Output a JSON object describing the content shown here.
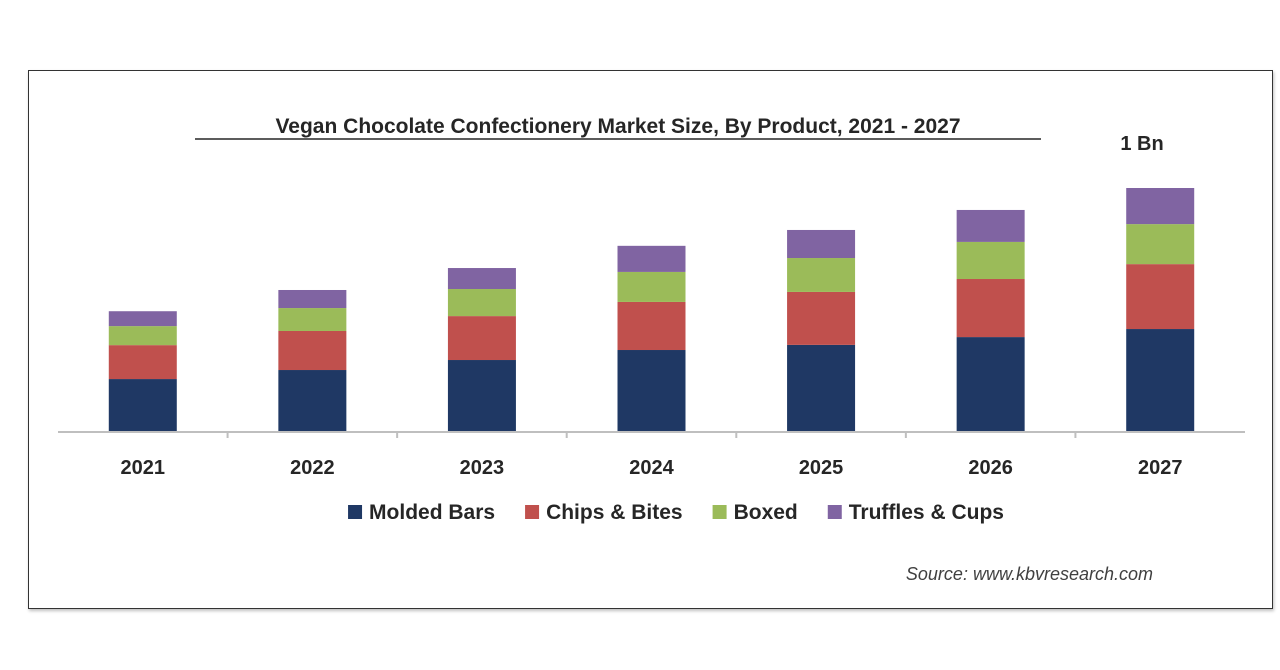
{
  "chart_data": {
    "type": "bar",
    "stacked": true,
    "title": "Vegan Chocolate Confectionery Market Size, By Product, 2021 - 2027",
    "xlabel": "",
    "ylabel": "",
    "ylim": [
      0,
      1.0
    ],
    "grid": false,
    "legend_position": "bottom",
    "categories": [
      "2021",
      "2022",
      "2023",
      "2024",
      "2025",
      "2026",
      "2027"
    ],
    "series": [
      {
        "name": "Molded Bars",
        "color": "#1f3864",
        "values": [
          0.217,
          0.254,
          0.295,
          0.336,
          0.357,
          0.389,
          0.422
        ]
      },
      {
        "name": "Chips & Bites",
        "color": "#c0504d",
        "values": [
          0.139,
          0.16,
          0.18,
          0.197,
          0.217,
          0.238,
          0.266
        ]
      },
      {
        "name": "Boxed",
        "color": "#9bbb59",
        "values": [
          0.078,
          0.094,
          0.111,
          0.123,
          0.139,
          0.152,
          0.164
        ]
      },
      {
        "name": "Truffles & Cups",
        "color": "#8064a2",
        "values": [
          0.061,
          0.074,
          0.086,
          0.107,
          0.115,
          0.131,
          0.148
        ]
      }
    ],
    "annotations": [
      {
        "category": "2027",
        "text": "1 Bn"
      }
    ],
    "source": "Source: www.kbvresearch.com"
  }
}
